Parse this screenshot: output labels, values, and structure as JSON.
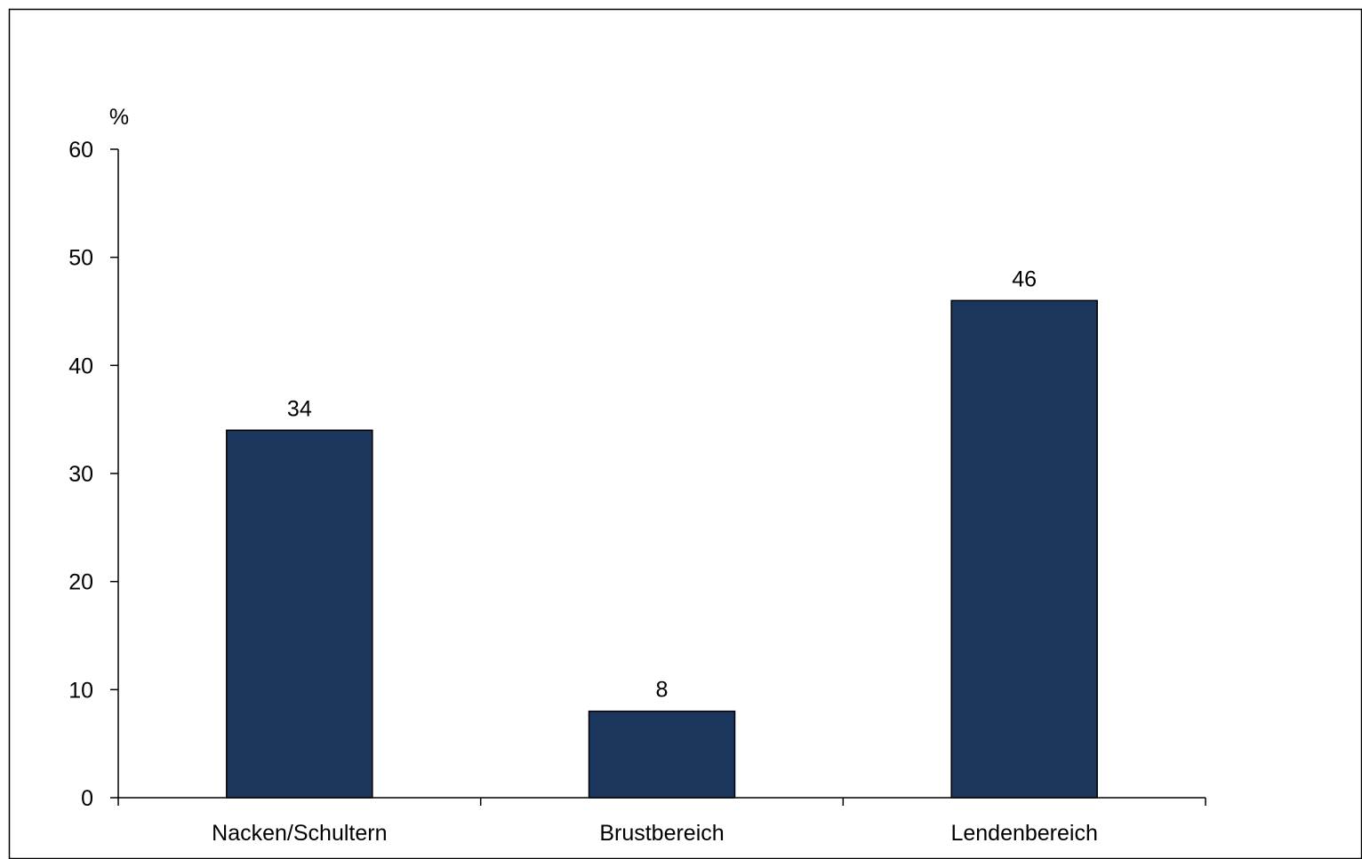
{
  "chart_data": {
    "type": "bar",
    "ylabel": "%",
    "ylim": [
      0,
      60
    ],
    "yticks": [
      0,
      10,
      20,
      30,
      40,
      50,
      60
    ],
    "categories": [
      "Nacken/Schultern",
      "Brustbereich",
      "Lendenbereich"
    ],
    "values": [
      34,
      8,
      46
    ],
    "data_labels": [
      "34",
      "8",
      "46"
    ],
    "grid": false,
    "legend": "none",
    "bar_color": "#1b365d",
    "bar_edge_color": "#000000"
  }
}
